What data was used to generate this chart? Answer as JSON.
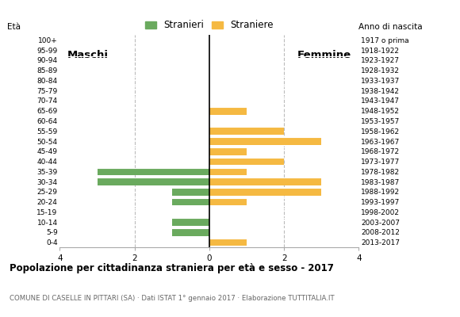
{
  "age_groups": [
    "0-4",
    "5-9",
    "10-14",
    "15-19",
    "20-24",
    "25-29",
    "30-34",
    "35-39",
    "40-44",
    "45-49",
    "50-54",
    "55-59",
    "60-64",
    "65-69",
    "70-74",
    "75-79",
    "80-84",
    "85-89",
    "90-94",
    "95-99",
    "100+"
  ],
  "birth_years": [
    "2013-2017",
    "2008-2012",
    "2003-2007",
    "1998-2002",
    "1993-1997",
    "1988-1992",
    "1983-1987",
    "1978-1982",
    "1973-1977",
    "1968-1972",
    "1963-1967",
    "1958-1962",
    "1953-1957",
    "1948-1952",
    "1943-1947",
    "1938-1942",
    "1933-1937",
    "1928-1932",
    "1923-1927",
    "1918-1922",
    "1917 o prima"
  ],
  "males": [
    0,
    1,
    1,
    0,
    1,
    1,
    3,
    3,
    0,
    0,
    0,
    0,
    0,
    0,
    0,
    0,
    0,
    0,
    0,
    0,
    0
  ],
  "females": [
    1,
    0,
    0,
    0,
    1,
    3,
    3,
    1,
    2,
    1,
    3,
    2,
    0,
    1,
    0,
    0,
    0,
    0,
    0,
    0,
    0
  ],
  "male_color": "#6aaa5e",
  "female_color": "#f5b942",
  "bar_height": 0.75,
  "xlim": 4,
  "title": "Popolazione per cittadinanza straniera per età e sesso - 2017",
  "subtitle": "COMUNE DI CASELLE IN PITTARI (SA) · Dati ISTAT 1° gennaio 2017 · Elaborazione TUTTITALIA.IT",
  "legend_male": "Stranieri",
  "legend_female": "Straniere",
  "label_eta": "Età",
  "label_anno": "Anno di nascita",
  "label_maschi": "Maschi",
  "label_femmine": "Femmine",
  "background_color": "#ffffff",
  "grid_color": "#bbbbbb"
}
